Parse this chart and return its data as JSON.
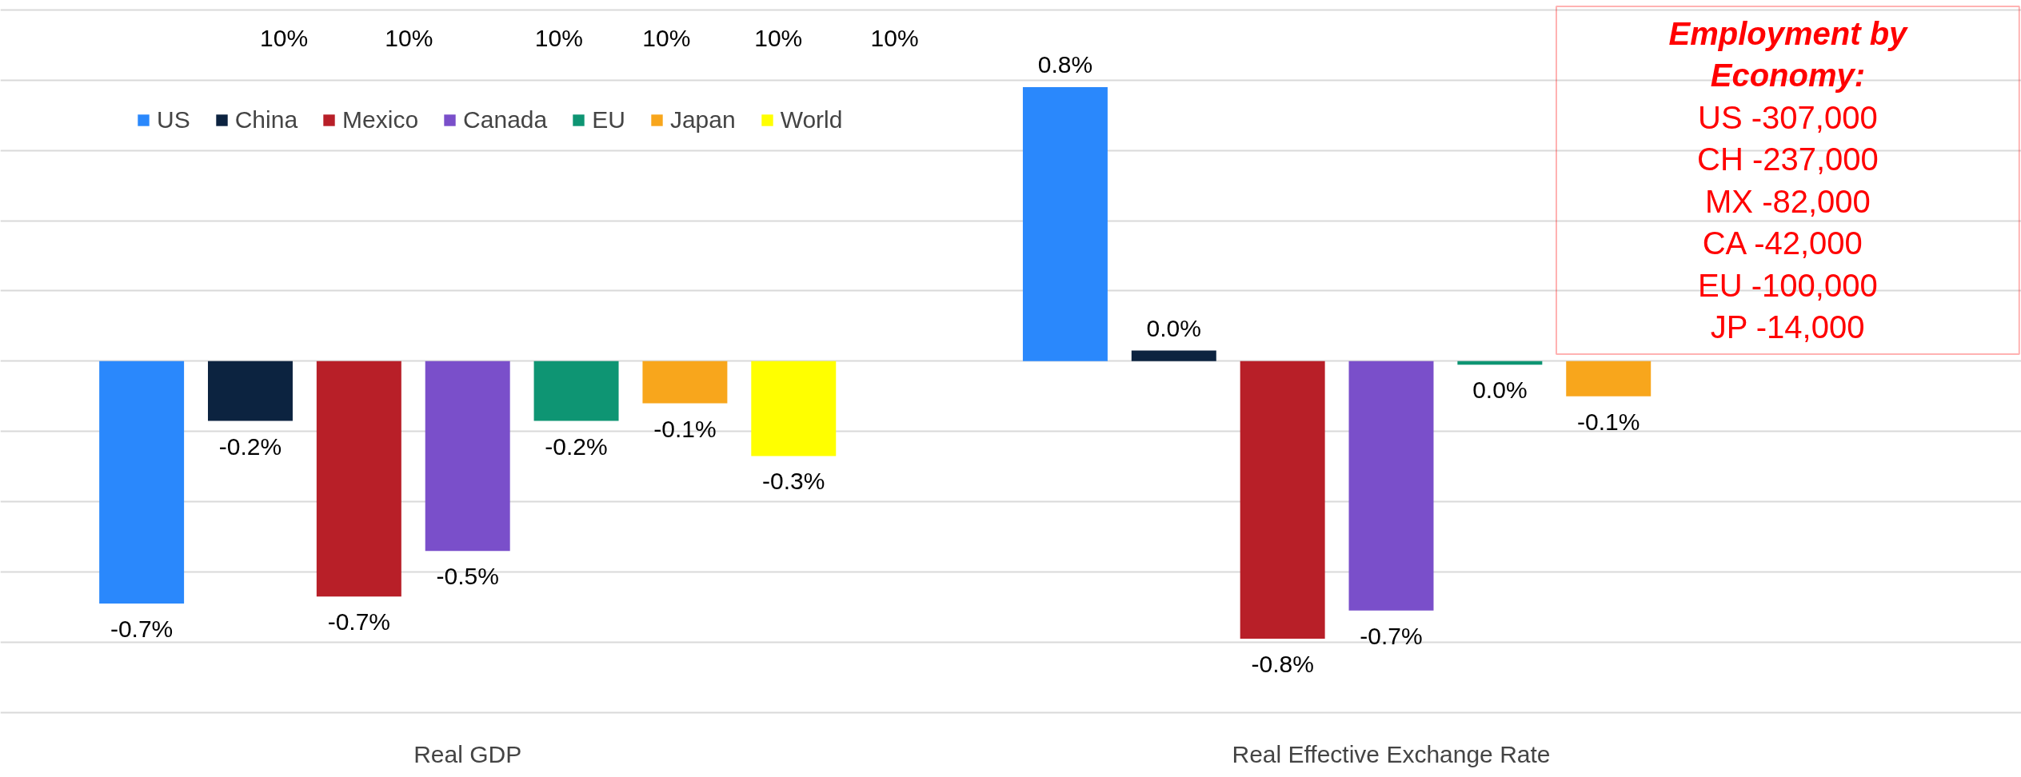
{
  "chart_data": {
    "type": "bar",
    "categories": [
      "Real GDP",
      "Real Effective Exchange Rate"
    ],
    "series": [
      {
        "name": "US",
        "color": "#2a88fc",
        "values": [
          -0.69,
          0.78
        ],
        "value_labels": [
          "-0.7%",
          "0.8%"
        ]
      },
      {
        "name": "China",
        "color": "#0c2340",
        "values": [
          -0.17,
          0.03
        ],
        "value_labels": [
          "-0.2%",
          "0.0%"
        ]
      },
      {
        "name": "Mexico",
        "color": "#b81f28",
        "values": [
          -0.67,
          -0.79
        ],
        "value_labels": [
          "-0.7%",
          "-0.8%"
        ]
      },
      {
        "name": "Canada",
        "color": "#7a4fca",
        "values": [
          -0.54,
          -0.71
        ],
        "value_labels": [
          "-0.5%",
          "-0.7%"
        ]
      },
      {
        "name": "EU",
        "color": "#0e9573",
        "values": [
          -0.17,
          -0.01
        ],
        "value_labels": [
          "-0.2%",
          "0.0%"
        ]
      },
      {
        "name": "Japan",
        "color": "#f8a61c",
        "values": [
          -0.12,
          -0.1
        ],
        "value_labels": [
          "-0.1%",
          "-0.1%"
        ]
      },
      {
        "name": "World",
        "color": "#ffff00",
        "values": [
          -0.27,
          null
        ],
        "value_labels": [
          "-0.3%",
          null
        ]
      }
    ],
    "tick_labels": "x",
    "grid": "y",
    "legend": "top left",
    "annotations": [
      "10%",
      "10%",
      "10%",
      "10%",
      "10%",
      "10%",
      "Employment by",
      "Economy:",
      "US -307,000",
      "CH -237,000",
      "MX -82,000",
      "CA  -42,000",
      "EU -100,000",
      "JP -14,000"
    ]
  }
}
